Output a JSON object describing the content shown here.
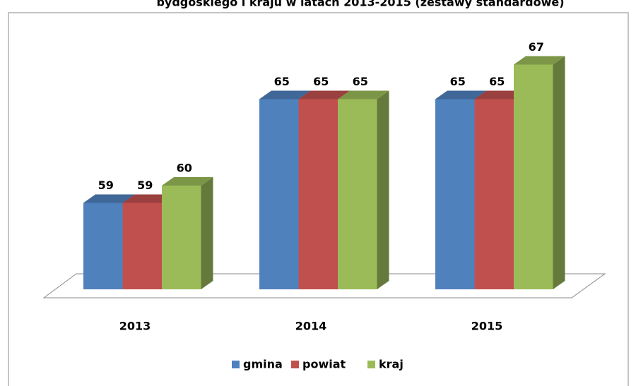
{
  "chart_data": {
    "type": "bar3d",
    "title": "bydgoskiego i kraju w latach 2013-2015 (zestawy standardowe)",
    "categories": [
      "2013",
      "2014",
      "2015"
    ],
    "series": [
      {
        "name": "gmina",
        "color": "#4f81bd",
        "values": [
          59,
          65,
          65
        ]
      },
      {
        "name": "powiat",
        "color": "#c0504d",
        "values": [
          59,
          65,
          65
        ]
      },
      {
        "name": "kraj",
        "color": "#9bbb59",
        "values": [
          60,
          65,
          67
        ]
      }
    ],
    "ylim": [
      54,
      68
    ],
    "legend": "bottom"
  }
}
